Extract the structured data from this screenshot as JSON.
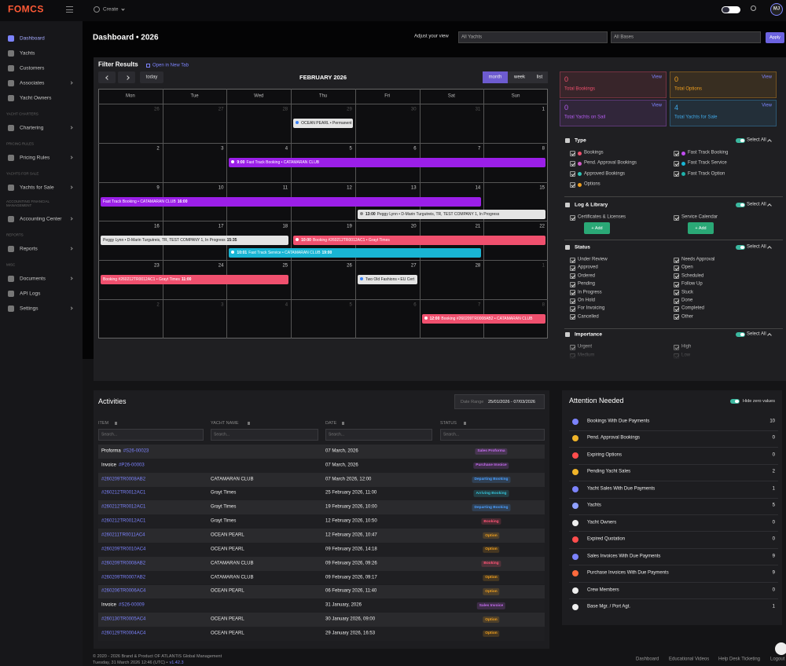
{
  "topbar": {
    "logo": "FOMCS",
    "create": "Create",
    "avatar": "MJ"
  },
  "sidebar": {
    "active": 0,
    "items": [
      {
        "label": "Dashboard"
      },
      {
        "label": "Yachts"
      },
      {
        "label": "Customers"
      },
      {
        "label": "Associates",
        "expandable": true
      },
      {
        "label": "Yacht Owners"
      },
      {
        "section": "YACHT CHARTERS"
      },
      {
        "label": "Chartering",
        "expandable": true
      },
      {
        "section": "PRICING RULES"
      },
      {
        "label": "Pricing Rules",
        "expandable": true
      },
      {
        "section": "YACHTS FOR SALE"
      },
      {
        "label": "Yachts for Sale",
        "expandable": true
      },
      {
        "section": "ACCOUNTING FINANCIAL MANAGEMENT"
      },
      {
        "label": "Accounting Center",
        "expandable": true
      },
      {
        "section": "REPORTS"
      },
      {
        "label": "Reports",
        "expandable": true
      },
      {
        "section": "MISC"
      },
      {
        "label": "Documents",
        "expandable": true
      },
      {
        "label": "API Logs"
      },
      {
        "label": "Settings",
        "expandable": true
      }
    ]
  },
  "header": {
    "title": "Dashboard • 2026",
    "adjust": "Adjust your view",
    "yachts": "All Yachts",
    "bases": "All Bases",
    "apply": "Apply"
  },
  "calendar": {
    "title": "Filter Results",
    "open_tab": "Open in New Tab",
    "today": "today",
    "month": "FEBRUARY 2026",
    "views": [
      "month",
      "week",
      "list"
    ],
    "active_view": 0,
    "weekdays": [
      "Mon",
      "Tue",
      "Wed",
      "Thu",
      "Fri",
      "Sat",
      "Sun"
    ],
    "weeks": [
      {
        "days": [
          26,
          27,
          28,
          29,
          30,
          31,
          1
        ],
        "muted": [
          0,
          1,
          2,
          3,
          4,
          5
        ],
        "events": [
          {
            "start": 3,
            "span": 1,
            "color": "#e4e4e4",
            "text_color": "#222",
            "dot": "#3b82f6",
            "text": "OCEAN PEARL • Permanent"
          }
        ]
      },
      {
        "days": [
          2,
          3,
          4,
          5,
          6,
          7,
          8
        ],
        "muted": [],
        "events": [
          {
            "start": 2,
            "span": 5,
            "color": "#9b1fe8",
            "text_color": "#fff",
            "dot": "#ffffff",
            "time": "9:00",
            "text": "Fast Track Booking • CATAMARAN CLUB"
          }
        ]
      },
      {
        "days": [
          9,
          10,
          11,
          12,
          13,
          14,
          15
        ],
        "muted": [],
        "events": [
          {
            "start": 0,
            "span": 6,
            "color": "#9b1fe8",
            "text_color": "#fff",
            "text": "Fast Track Booking • CATAMARAN CLUB",
            "end_time": "16:00"
          },
          {
            "start": 4,
            "span": 3,
            "color": "#e4e4e4",
            "text_color": "#222",
            "dot": "#888888",
            "time": "13:00",
            "text": "Peggy Lynn • D-Marin Turgutreis, TR, TEST COMPANY 1, In Progress"
          }
        ]
      },
      {
        "days": [
          16,
          17,
          18,
          19,
          20,
          21,
          22
        ],
        "muted": [],
        "events": [
          {
            "start": 0,
            "span": 3,
            "color": "#e4e4e4",
            "text_color": "#222",
            "text": "Peggy Lynn • D-Marin Turgutreis, TR, TEST COMPANY 1, In Progress",
            "end_time": "15:35"
          },
          {
            "start": 3,
            "span": 4,
            "color": "#f0506e",
            "text_color": "#fff",
            "dot": "#ffffff",
            "time": "10:00",
            "text": "Booking #260212TR0012AC1 • Grayt Times"
          },
          {
            "start": 2,
            "span": 4,
            "color": "#19b5d4",
            "text_color": "#fff",
            "dot": "#ffffff",
            "time": "10:01",
            "text": "Fast Track Service • CATAMARAN CLUB",
            "end_time": "19:00"
          }
        ]
      },
      {
        "days": [
          23,
          24,
          25,
          26,
          27,
          28,
          1
        ],
        "muted": [
          6
        ],
        "events": [
          {
            "start": 0,
            "span": 3,
            "color": "#f0506e",
            "text_color": "#fff",
            "text": "Booking #260212TR0012AC1 • Grayt Times",
            "end_time": "11:00"
          },
          {
            "start": 4,
            "span": 1,
            "color": "#e4e4e4",
            "text_color": "#222",
            "dot": "#3b82f6",
            "text": "Two Old Fashions • EU Cert"
          }
        ]
      },
      {
        "days": [
          2,
          3,
          4,
          5,
          6,
          7,
          8
        ],
        "muted": [
          0,
          1,
          2,
          3,
          4,
          5,
          6
        ],
        "events": [
          {
            "start": 5,
            "span": 2,
            "color": "#f0506e",
            "text_color": "#fff",
            "dot": "#ffffff",
            "time": "12:00",
            "text": "Booking #260209TR0008AB2 • CATAMARAN CLUB"
          }
        ]
      }
    ]
  },
  "stats": [
    {
      "value": 0,
      "label": "Total Bookings",
      "link": "View",
      "color": "#f0506e"
    },
    {
      "value": 0,
      "label": "Total Options",
      "link": "View",
      "color": "#f0a020"
    },
    {
      "value": 0,
      "label": "Total Yachts on Sail",
      "link": "View",
      "color": "#b45cf0"
    },
    {
      "value": 4,
      "label": "Total Yachts for Sale",
      "link": "View",
      "color": "#3fa8e8"
    }
  ],
  "filters": [
    {
      "title": "Type",
      "select_all": "Select All",
      "items": [
        {
          "label": "Bookings",
          "color": "#f0506e"
        },
        {
          "label": "Fast Track Booking",
          "color": "#c04cf0"
        },
        {
          "label": "Pend. Approval Bookings",
          "color": "#d25cc8"
        },
        {
          "label": "Fast Track Service",
          "color": "#19b5d4"
        },
        {
          "label": "Approved Bookings",
          "color": "#2ec4b6"
        },
        {
          "label": "Fast Track Option",
          "color": "#1fb0a8"
        },
        {
          "label": "Options",
          "color": "#f0a020"
        }
      ]
    },
    {
      "title": "Log & Library",
      "select_all": "Select All",
      "items": [
        {
          "label": "Certificates & Licenses",
          "button": "+ Add"
        },
        {
          "label": "Service Calendar",
          "button": "+ Add"
        }
      ]
    },
    {
      "title": "Status",
      "select_all": "Select All",
      "items": [
        {
          "label": "Under Review"
        },
        {
          "label": "Needs Approval"
        },
        {
          "label": "Approved"
        },
        {
          "label": "Open"
        },
        {
          "label": "Ordered"
        },
        {
          "label": "Scheduled"
        },
        {
          "label": "Pending"
        },
        {
          "label": "Follow Up"
        },
        {
          "label": "In Progress"
        },
        {
          "label": "Stuck"
        },
        {
          "label": "On Hold"
        },
        {
          "label": "Done"
        },
        {
          "label": "For Invoicing"
        },
        {
          "label": "Completed"
        },
        {
          "label": "Cancelled"
        },
        {
          "label": "Other"
        }
      ]
    },
    {
      "title": "Importance",
      "select_all": "Select All",
      "items": [
        {
          "label": "Urgent"
        },
        {
          "label": "High"
        },
        {
          "label": "Medium"
        },
        {
          "label": "Low"
        }
      ]
    }
  ],
  "activities": {
    "title": "Activities",
    "date_label": "Date Range",
    "date_range": "25/01/2026 - 07/03/2026",
    "columns": [
      "ITEM",
      "YACHT NAME",
      "DATE",
      "STATUS"
    ],
    "search": "Search...",
    "rows": [
      {
        "prefix": "Proforma",
        "ref": "#S26-00023",
        "date": "07 March, 2026",
        "status": "Sales Proforma",
        "status_color": "#c56cf0"
      },
      {
        "prefix": "Invoice",
        "ref": "#P26-00003",
        "date": "07 March, 2026",
        "status": "Purchase Invoice",
        "status_color": "#c56cf0"
      },
      {
        "ref": "#260209TR0008AB2",
        "yacht": "CATAMARAN CLUB",
        "date": "07 March 2026, 12:00",
        "status": "Departing Booking",
        "status_color": "#4a9eff"
      },
      {
        "ref": "#260212TR0012AC1",
        "yacht": "Grayt Times",
        "date": "25 February 2026, 11:00",
        "status": "Arriving Booking",
        "status_color": "#34c3d9"
      },
      {
        "ref": "#260212TR0012AC1",
        "yacht": "Grayt Times",
        "date": "19 February 2026, 10:00",
        "status": "Departing Booking",
        "status_color": "#4a9eff"
      },
      {
        "ref": "#260212TR0012AC1",
        "yacht": "Grayt Times",
        "date": "12 February 2026, 10:50",
        "status": "Booking",
        "status_color": "#ff5577"
      },
      {
        "ref": "#260211TR0011AC4",
        "yacht": "OCEAN PEARL",
        "date": "12 February 2026, 10:47",
        "status": "Option",
        "status_color": "#f0a020"
      },
      {
        "ref": "#260209TR0010AC4",
        "yacht": "OCEAN PEARL",
        "date": "09 February 2026, 14:18",
        "status": "Option",
        "status_color": "#f0a020"
      },
      {
        "ref": "#260209TR0008AB2",
        "yacht": "CATAMARAN CLUB",
        "date": "09 February 2026, 09:26",
        "status": "Booking",
        "status_color": "#ff5577"
      },
      {
        "ref": "#260209TR0007AB2",
        "yacht": "CATAMARAN CLUB",
        "date": "09 February 2026, 09:17",
        "status": "Option",
        "status_color": "#f0a020"
      },
      {
        "ref": "#260206TR0006AC4",
        "yacht": "OCEAN PEARL",
        "date": "06 February 2026, 11:40",
        "status": "Option",
        "status_color": "#f0a020"
      },
      {
        "prefix": "Invoice",
        "ref": "#S26-00009",
        "date": "31 January, 2026",
        "status": "Sales Invoice",
        "status_color": "#c56cf0"
      },
      {
        "ref": "#260130TR0005AC4",
        "yacht": "OCEAN PEARL",
        "date": "30 January 2026, 09:00",
        "status": "Option",
        "status_color": "#f0a020"
      },
      {
        "ref": "#260129TR0004AC4",
        "yacht": "OCEAN PEARL",
        "date": "29 January 2026, 16:53",
        "status": "Option",
        "status_color": "#f0a020"
      }
    ]
  },
  "attention": {
    "title": "Attention Needed",
    "hide_zero": "Hide zero values",
    "items": [
      {
        "label": "Bookings With Due Payments",
        "count": 10,
        "icon_color": "#7c83fd"
      },
      {
        "label": "Pend. Approval Bookings",
        "count": 0,
        "icon_color": "#f0b429"
      },
      {
        "label": "Expiring Options",
        "count": 0,
        "icon_color": "#ff4d4d"
      },
      {
        "label": "Pending Yacht Sales",
        "count": 2,
        "icon_color": "#f0b429"
      },
      {
        "label": "Yacht Sales With Due Payments",
        "count": 1,
        "icon_color": "#7c83fd"
      },
      {
        "label": "Yachts",
        "count": 5,
        "icon_color": "#8fa0ff"
      },
      {
        "label": "Yacht Owners",
        "count": 0,
        "icon_color": "#eeeeee"
      },
      {
        "label": "Expired Quotation",
        "count": 0,
        "icon_color": "#ff4d4d"
      },
      {
        "label": "Sales Invoices With Due Payments",
        "count": 9,
        "icon_color": "#7c83fd"
      },
      {
        "label": "Purchase Invoices With Due Payments",
        "count": 9,
        "icon_color": "#ff6a3d"
      },
      {
        "label": "Crew Members",
        "count": 0,
        "icon_color": "#eeeeee"
      },
      {
        "label": "Base Mgr. / Port Agt.",
        "count": 1,
        "icon_color": "#eeeeee"
      }
    ]
  },
  "footer": {
    "copyright": "© 2020 - 2026 Brand & Product OF ATLANTIS Global Management",
    "datetime": "Tuesday, 31 March 2026 12:46 (UTC) •",
    "version": "v1.42.3",
    "links": [
      "Dashboard",
      "Educational Videos",
      "Help Desk Ticketing",
      "Logout"
    ]
  }
}
